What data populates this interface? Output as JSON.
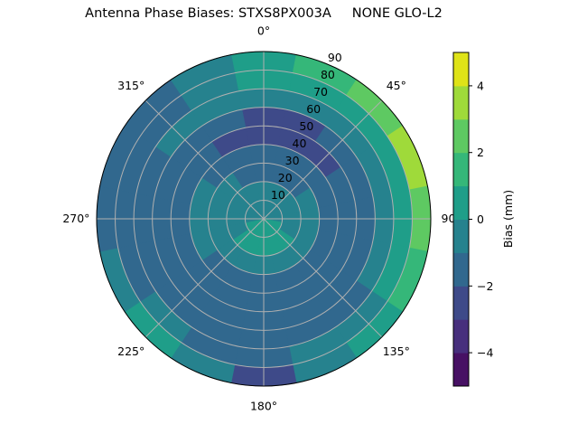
{
  "chart_data": {
    "type": "heatmap",
    "projection": "polar",
    "title": "Antenna Phase Biases: STXS8PX003A     NONE GLO-L2",
    "theta_direction": "clockwise",
    "theta_zero": "north",
    "theta_tick_labels": [
      "0°",
      "45°",
      "90°",
      "135°",
      "180°",
      "225°",
      "270°",
      "315°"
    ],
    "r_tick_labels": [
      "10",
      "20",
      "30",
      "40",
      "50",
      "60",
      "70",
      "80",
      "90"
    ],
    "rlim": [
      0,
      90
    ],
    "grid": true,
    "azimuth_bins_deg": [
      0,
      22.5,
      45,
      67.5,
      90,
      112.5,
      135,
      157.5,
      180,
      202.5,
      225,
      247.5,
      270,
      292.5,
      315,
      337.5
    ],
    "zenith_bins_deg": [
      5,
      15,
      25,
      35,
      45,
      55,
      65,
      75,
      85
    ],
    "values_mm": [
      [
        -0.5,
        -0.5,
        -0.5,
        -0.5,
        -0.5,
        0.5,
        0.5,
        0.5,
        0.5,
        0.5,
        0.5,
        0.5,
        -0.5,
        -0.5,
        -0.5,
        -0.5
      ],
      [
        -0.5,
        -0.5,
        -0.5,
        -0.5,
        -0.5,
        -0.5,
        0.5,
        0.5,
        0.5,
        0.5,
        0.5,
        -0.5,
        -0.5,
        -0.5,
        -0.5,
        -0.5
      ],
      [
        -1.5,
        -1.5,
        -1.5,
        -0.5,
        -0.5,
        -0.5,
        -0.5,
        -0.5,
        -0.5,
        -0.5,
        -0.5,
        -0.5,
        -0.5,
        -0.5,
        -0.5,
        -1.5
      ],
      [
        -1.5,
        -1.5,
        -1.5,
        -1.5,
        -1.5,
        -1.5,
        -1.5,
        -1.5,
        -1.5,
        -1.5,
        -1.5,
        -0.5,
        -0.5,
        -0.5,
        -1.5,
        -1.5
      ],
      [
        -2.5,
        -2.5,
        -2.5,
        -1.5,
        -1.5,
        -1.5,
        -1.5,
        -1.5,
        -1.5,
        -1.5,
        -1.5,
        -1.5,
        -1.5,
        -1.5,
        -1.5,
        -2.5
      ],
      [
        -2.5,
        -2.5,
        -1.5,
        -1.5,
        -1.5,
        -1.5,
        -1.5,
        -1.5,
        -1.5,
        -1.5,
        -1.5,
        -1.5,
        -1.5,
        -1.5,
        -1.5,
        -1.5
      ],
      [
        -0.5,
        -0.5,
        -0.5,
        -0.5,
        -0.5,
        -0.5,
        -1.5,
        -1.5,
        -1.5,
        -1.5,
        -1.5,
        -1.5,
        -1.5,
        -1.5,
        -0.5,
        -0.5
      ],
      [
        0.5,
        0.5,
        0.5,
        0.5,
        0.5,
        0.5,
        -0.5,
        -0.5,
        -1.5,
        -1.5,
        -0.5,
        -1.5,
        -1.5,
        -1.5,
        -1.5,
        -0.5
      ],
      [
        0.5,
        1.5,
        2.5,
        3.5,
        2.5,
        1.5,
        0.5,
        -0.5,
        -2.5,
        -0.5,
        0.5,
        -0.5,
        -1.5,
        -1.5,
        -1.5,
        -0.5
      ]
    ],
    "colorbar": {
      "label": "Bias (mm)",
      "levels": [
        -5,
        -4,
        -3,
        -2,
        -1,
        0,
        1,
        2,
        3,
        4,
        5
      ],
      "tick_values": [
        -4,
        -2,
        0,
        2,
        4
      ],
      "tick_labels": [
        "−4",
        "−2",
        "0",
        "2",
        "4"
      ],
      "colors": [
        "#471164",
        "#472f7d",
        "#3e4a89",
        "#31688e",
        "#26828e",
        "#1f9e89",
        "#35b779",
        "#5ec962",
        "#9fda3a",
        "#dfe318"
      ],
      "colormap": "viridis"
    }
  }
}
